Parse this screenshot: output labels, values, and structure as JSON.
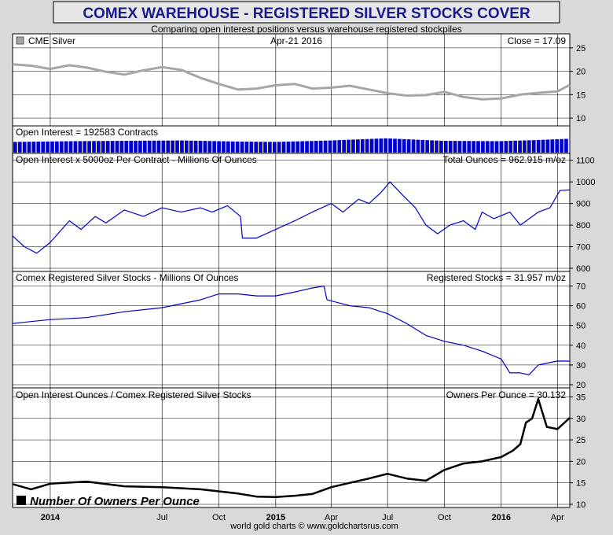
{
  "title": "COMEX WAREHOUSE - REGISTERED SILVER STOCKS COVER",
  "subtitle": "Comparing open interest positions versus warehouse registered stockpiles",
  "footer": "world gold charts © www.goldchartsrus.com",
  "colors": {
    "title_bg": "#e6e6e6",
    "title_text": "#1a1a8c",
    "silver": "#a6a6a6",
    "oi_bars": "#0000cc",
    "blue_line": "#0000cc",
    "owners": "#000000"
  },
  "x_axis": {
    "start": "2013-11-01",
    "end": "2016-04-21",
    "ticks": [
      {
        "date": "2014-01-01",
        "label": "2014",
        "bold": true
      },
      {
        "date": "2014-07-01",
        "label": "Jul",
        "bold": false
      },
      {
        "date": "2014-10-01",
        "label": "Oct",
        "bold": false
      },
      {
        "date": "2015-01-01",
        "label": "2015",
        "bold": true
      },
      {
        "date": "2015-04-01",
        "label": "Apr",
        "bold": false
      },
      {
        "date": "2015-07-01",
        "label": "Jul",
        "bold": false
      },
      {
        "date": "2015-10-01",
        "label": "Oct",
        "bold": false
      },
      {
        "date": "2016-01-01",
        "label": "2016",
        "bold": true
      },
      {
        "date": "2016-04-01",
        "label": "Apr",
        "bold": false
      }
    ]
  },
  "chart_data": [
    {
      "type": "line",
      "legend": "CME Silver",
      "date_label": "Apr-21  2016",
      "value_label": "Close = 17.09",
      "ylim": [
        9,
        27
      ],
      "yticks": [
        10,
        15,
        20,
        25
      ],
      "x": [
        "2013-11-01",
        "2013-12-01",
        "2014-01-01",
        "2014-02-01",
        "2014-03-01",
        "2014-04-01",
        "2014-05-01",
        "2014-06-01",
        "2014-07-01",
        "2014-08-01",
        "2014-09-01",
        "2014-10-01",
        "2014-11-01",
        "2014-12-01",
        "2015-01-01",
        "2015-02-01",
        "2015-03-01",
        "2015-04-01",
        "2015-05-01",
        "2015-06-01",
        "2015-07-01",
        "2015-08-01",
        "2015-09-01",
        "2015-10-01",
        "2015-11-01",
        "2015-12-01",
        "2016-01-01",
        "2016-02-01",
        "2016-03-01",
        "2016-04-01",
        "2016-04-21"
      ],
      "values": [
        21.5,
        21.2,
        20.5,
        21.3,
        20.8,
        19.9,
        19.3,
        20.2,
        20.9,
        20.3,
        18.6,
        17.3,
        16.1,
        16.3,
        17.0,
        17.3,
        16.3,
        16.5,
        16.9,
        16.1,
        15.3,
        14.8,
        14.9,
        15.6,
        14.5,
        14.0,
        14.2,
        15.0,
        15.4,
        15.7,
        17.09
      ]
    },
    {
      "type": "bar",
      "legend": "Open Interest = 192583 Contracts",
      "x": [
        "2013-11-01",
        "2014-02-01",
        "2014-05-01",
        "2014-08-01",
        "2014-11-01",
        "2015-01-01",
        "2015-04-01",
        "2015-07-01",
        "2015-10-01",
        "2016-01-01",
        "2016-03-01",
        "2016-04-21"
      ],
      "values": [
        150,
        160,
        165,
        170,
        155,
        150,
        170,
        200,
        165,
        160,
        175,
        192.6
      ]
    },
    {
      "type": "line",
      "legend": "Open Interest x 5000oz Per Contract - Millions Of Ounces",
      "value_label": "Total Ounces = 962.915 m/oz",
      "ylim": [
        600,
        1110
      ],
      "yticks": [
        600,
        700,
        800,
        900,
        1000,
        1100
      ],
      "x": [
        "2013-11-01",
        "2013-11-20",
        "2013-12-10",
        "2014-01-01",
        "2014-02-01",
        "2014-02-20",
        "2014-03-15",
        "2014-04-01",
        "2014-05-01",
        "2014-06-01",
        "2014-07-01",
        "2014-08-01",
        "2014-09-01",
        "2014-09-20",
        "2014-10-15",
        "2014-11-05",
        "2014-11-08",
        "2014-12-01",
        "2015-01-01",
        "2015-02-01",
        "2015-03-01",
        "2015-04-01",
        "2015-04-20",
        "2015-05-15",
        "2015-06-01",
        "2015-06-20",
        "2015-07-05",
        "2015-07-25",
        "2015-08-15",
        "2015-09-01",
        "2015-09-20",
        "2015-10-10",
        "2015-11-01",
        "2015-11-20",
        "2015-12-01",
        "2015-12-20",
        "2016-01-15",
        "2016-02-01",
        "2016-03-01",
        "2016-03-20",
        "2016-04-05",
        "2016-04-21"
      ],
      "values": [
        750,
        700,
        670,
        720,
        820,
        780,
        840,
        810,
        870,
        840,
        880,
        860,
        880,
        860,
        890,
        840,
        740,
        740,
        780,
        820,
        860,
        900,
        860,
        920,
        900,
        950,
        1000,
        940,
        880,
        800,
        760,
        800,
        820,
        780,
        860,
        830,
        860,
        800,
        860,
        880,
        960,
        962.9
      ]
    },
    {
      "type": "line",
      "legend": "Comex Registered Silver Stocks - Millions Of Ounces",
      "value_label": "Registered Stocks = 31.957 m/oz",
      "ylim": [
        20,
        75
      ],
      "yticks": [
        20,
        30,
        40,
        50,
        60,
        70
      ],
      "x": [
        "2013-11-01",
        "2013-12-01",
        "2014-01-01",
        "2014-03-01",
        "2014-05-01",
        "2014-07-01",
        "2014-09-01",
        "2014-10-01",
        "2014-11-01",
        "2014-12-01",
        "2015-01-01",
        "2015-02-01",
        "2015-03-01",
        "2015-03-20",
        "2015-03-25",
        "2015-05-01",
        "2015-06-01",
        "2015-07-01",
        "2015-08-01",
        "2015-09-01",
        "2015-10-01",
        "2015-11-01",
        "2015-12-01",
        "2016-01-01",
        "2016-01-15",
        "2016-02-01",
        "2016-02-15",
        "2016-03-01",
        "2016-04-01",
        "2016-04-21"
      ],
      "values": [
        51,
        52,
        53,
        54,
        57,
        59,
        63,
        66,
        66,
        65,
        65,
        67,
        69,
        70,
        63,
        60,
        59,
        56,
        51,
        45,
        42,
        40,
        37,
        33,
        26,
        26,
        25,
        30,
        32,
        31.957
      ]
    },
    {
      "type": "line",
      "legend": "Open Interest Ounces / Comex Registered Silver Stocks",
      "value_label": "Owners Per Ounce = 30.132",
      "annotation": "Number Of Owners Per Ounce",
      "ylim": [
        10,
        36
      ],
      "yticks": [
        10,
        15,
        20,
        25,
        30,
        35
      ],
      "x": [
        "2013-11-01",
        "2013-12-01",
        "2014-01-01",
        "2014-03-01",
        "2014-05-01",
        "2014-07-01",
        "2014-09-01",
        "2014-11-01",
        "2014-12-01",
        "2015-01-01",
        "2015-02-01",
        "2015-03-01",
        "2015-04-01",
        "2015-05-01",
        "2015-06-01",
        "2015-07-01",
        "2015-08-01",
        "2015-09-01",
        "2015-10-01",
        "2015-11-01",
        "2015-12-01",
        "2016-01-01",
        "2016-01-20",
        "2016-02-01",
        "2016-02-10",
        "2016-02-20",
        "2016-03-01",
        "2016-03-15",
        "2016-04-01",
        "2016-04-21"
      ],
      "values": [
        14.7,
        13.5,
        14.8,
        15.3,
        14.2,
        14.0,
        13.5,
        12.5,
        11.8,
        11.7,
        12.0,
        12.4,
        14.0,
        15.0,
        16.0,
        17.1,
        16.0,
        15.5,
        18.0,
        19.5,
        20.0,
        21.0,
        22.5,
        24.0,
        29.0,
        30.0,
        34.5,
        28.0,
        27.5,
        30.132
      ]
    }
  ]
}
